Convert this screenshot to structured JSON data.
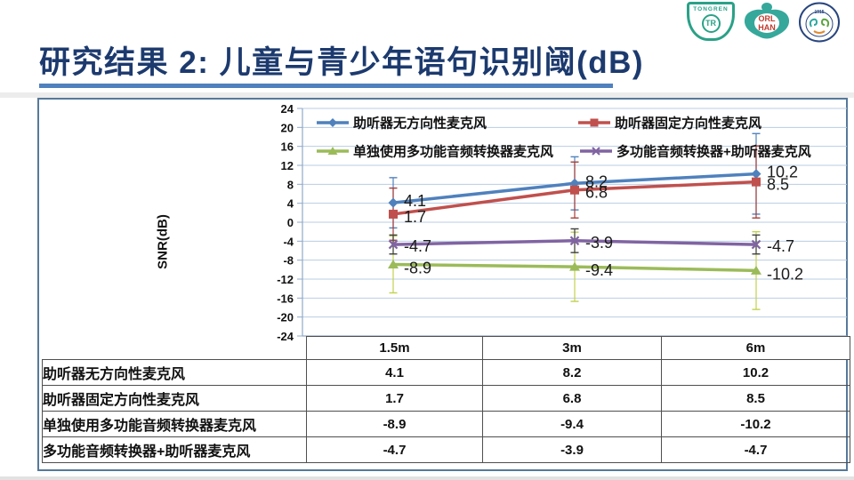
{
  "title": {
    "text": "研究结果 2: 儿童与青少年语句识别阈(dB)",
    "color": "#1c3a6e",
    "underline_color": "#4f81bd"
  },
  "logos": {
    "tongren": {
      "label": "TONGREN",
      "monogram": "TR",
      "color": "#2aa187"
    },
    "orlhan": {
      "line1": "ORL",
      "line2": "HAN",
      "shape_color": "#35a89b",
      "text_color": "#c23b2e"
    },
    "hospital": {
      "year": "1915",
      "ring_color": "#27457f"
    }
  },
  "chart_data": {
    "type": "line",
    "title": "",
    "xlabel": "",
    "ylabel": "SNR(dB)",
    "categories": [
      "1.5m",
      "3m",
      "6m"
    ],
    "ylim": [
      -24,
      24
    ],
    "ytick_step": 4,
    "grid": true,
    "legend_position": "top-inside",
    "series": [
      {
        "name": "助听器无方向性麦克风",
        "color": "#4f81bd",
        "error_color": "#4f81bd",
        "marker": "diamond",
        "values": [
          4.1,
          8.2,
          10.2
        ],
        "errors": [
          5.3,
          5.6,
          8.5
        ]
      },
      {
        "name": "助听器固定方向性麦克风",
        "color": "#c0504d",
        "error_color": "#a83e3b",
        "marker": "square",
        "values": [
          1.7,
          6.8,
          8.5
        ],
        "errors": [
          5.5,
          5.9,
          7.6
        ]
      },
      {
        "name": "单独使用多功能音频转换器麦克风",
        "color": "#9bbb59",
        "error_color": "#c3d24d",
        "marker": "triangle",
        "values": [
          -8.9,
          -9.4,
          -10.2
        ],
        "errors": [
          6,
          7.3,
          8.2
        ]
      },
      {
        "name": "多功能音频转换器+助听器麦克风",
        "color": "#8064a2",
        "error_color": "#3f3f3f",
        "marker": "x",
        "values": [
          -4.7,
          -3.9,
          -4.7
        ],
        "errors": [
          2,
          2.5,
          2
        ]
      }
    ]
  },
  "table": {
    "headers": [
      "",
      "1.5m",
      "3m",
      "6m"
    ],
    "rows": [
      {
        "label": "助听器无方向性麦克风",
        "values": [
          "4.1",
          "8.2",
          "10.2"
        ]
      },
      {
        "label": "助听器固定方向性麦克风",
        "values": [
          "1.7",
          "6.8",
          "8.5"
        ]
      },
      {
        "label": "单独使用多功能音频转换器麦克风",
        "values": [
          "-8.9",
          "-9.4",
          "-10.2"
        ]
      },
      {
        "label": "多功能音频转换器+助听器麦克风",
        "values": [
          "-4.7",
          "-3.9",
          "-4.7"
        ]
      }
    ]
  }
}
